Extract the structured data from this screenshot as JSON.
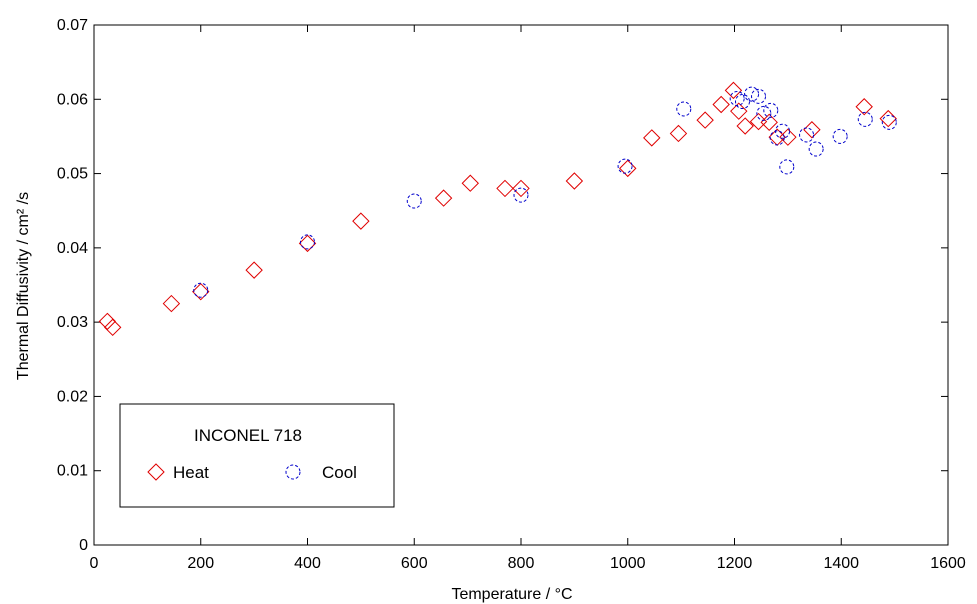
{
  "chart_data": {
    "type": "scatter",
    "title": "",
    "xlabel": "Temperature / °C",
    "ylabel": "Thermal Diffusivity / cm² /s",
    "xlim": [
      0,
      1600
    ],
    "ylim": [
      0,
      0.07
    ],
    "xticks": [
      0,
      200,
      400,
      600,
      800,
      1000,
      1200,
      1400,
      1600
    ],
    "yticks": [
      0,
      0.01,
      0.02,
      0.03,
      0.04,
      0.05,
      0.06,
      0.07
    ],
    "xtick_labels": [
      "0",
      "200",
      "400",
      "600",
      "800",
      "1000",
      "1200",
      "1400",
      "1600"
    ],
    "ytick_labels": [
      "0",
      "0.01",
      "0.02",
      "0.03",
      "0.04",
      "0.05",
      "0.06",
      "0.07"
    ],
    "grid": false,
    "legend": {
      "title": "INCONEL 718",
      "placement": "bottom-left"
    },
    "series": [
      {
        "name": "Heat",
        "marker": "diamond",
        "color": "#e00000",
        "points": [
          [
            25,
            0.0301
          ],
          [
            35,
            0.0293
          ],
          [
            145,
            0.0325
          ],
          [
            200,
            0.0341
          ],
          [
            300,
            0.037
          ],
          [
            400,
            0.0406
          ],
          [
            500,
            0.0436
          ],
          [
            655,
            0.0467
          ],
          [
            705,
            0.0487
          ],
          [
            770,
            0.048
          ],
          [
            800,
            0.048
          ],
          [
            900,
            0.049
          ],
          [
            1000,
            0.0507
          ],
          [
            1045,
            0.0548
          ],
          [
            1095,
            0.0554
          ],
          [
            1145,
            0.0572
          ],
          [
            1175,
            0.0593
          ],
          [
            1198,
            0.0612
          ],
          [
            1208,
            0.0584
          ],
          [
            1220,
            0.0564
          ],
          [
            1245,
            0.057
          ],
          [
            1265,
            0.0569
          ],
          [
            1280,
            0.0549
          ],
          [
            1300,
            0.0549
          ],
          [
            1345,
            0.0559
          ],
          [
            1443,
            0.059
          ],
          [
            1488,
            0.0574
          ]
        ]
      },
      {
        "name": "Cool",
        "marker": "circle",
        "color": "#0000cc",
        "points": [
          [
            200,
            0.0343
          ],
          [
            400,
            0.0408
          ],
          [
            600,
            0.0463
          ],
          [
            800,
            0.0471
          ],
          [
            995,
            0.051
          ],
          [
            1105,
            0.0587
          ],
          [
            1205,
            0.0601
          ],
          [
            1215,
            0.0597
          ],
          [
            1232,
            0.0607
          ],
          [
            1245,
            0.0604
          ],
          [
            1255,
            0.0581
          ],
          [
            1268,
            0.0585
          ],
          [
            1280,
            0.0548
          ],
          [
            1290,
            0.0557
          ],
          [
            1298,
            0.0509
          ],
          [
            1335,
            0.0552
          ],
          [
            1353,
            0.0533
          ],
          [
            1398,
            0.055
          ],
          [
            1445,
            0.0573
          ],
          [
            1490,
            0.0569
          ]
        ]
      }
    ]
  }
}
